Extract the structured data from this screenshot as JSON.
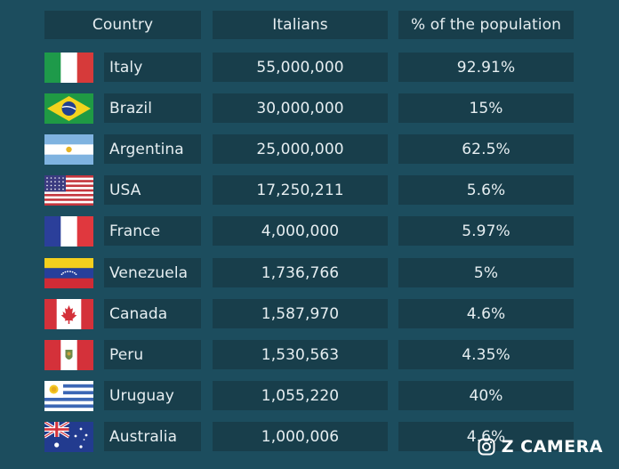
{
  "chart_data": {
    "type": "table",
    "columns": [
      "Country",
      "Italians",
      "% of the population"
    ],
    "rows": [
      {
        "country": "Italy",
        "italians": "55,000,000",
        "percent": "92.91%",
        "flag": "italy-flag"
      },
      {
        "country": "Brazil",
        "italians": "30,000,000",
        "percent": "15%",
        "flag": "brazil-flag"
      },
      {
        "country": "Argentina",
        "italians": "25,000,000",
        "percent": "62.5%",
        "flag": "argentina-flag"
      },
      {
        "country": "USA",
        "italians": "17,250,211",
        "percent": "5.6%",
        "flag": "usa-flag"
      },
      {
        "country": "France",
        "italians": "4,000,000",
        "percent": "5.97%",
        "flag": "france-flag"
      },
      {
        "country": "Venezuela",
        "italians": "1,736,766",
        "percent": "5%",
        "flag": "venezuela-flag"
      },
      {
        "country": "Canada",
        "italians": "1,587,970",
        "percent": "4.6%",
        "flag": "canada-flag"
      },
      {
        "country": "Peru",
        "italians": "1,530,563",
        "percent": "4.35%",
        "flag": "peru-flag"
      },
      {
        "country": "Uruguay",
        "italians": "1,055,220",
        "percent": "40%",
        "flag": "uruguay-flag"
      },
      {
        "country": "Australia",
        "italians": "1,000,006",
        "percent": "4.6%",
        "flag": "australia-flag"
      }
    ]
  },
  "watermark": {
    "text": "Z CAMERA",
    "icon": "camera-icon"
  },
  "colors": {
    "background": "#1c4d5e",
    "cell": "#183e4b",
    "text": "#e6eef1"
  }
}
